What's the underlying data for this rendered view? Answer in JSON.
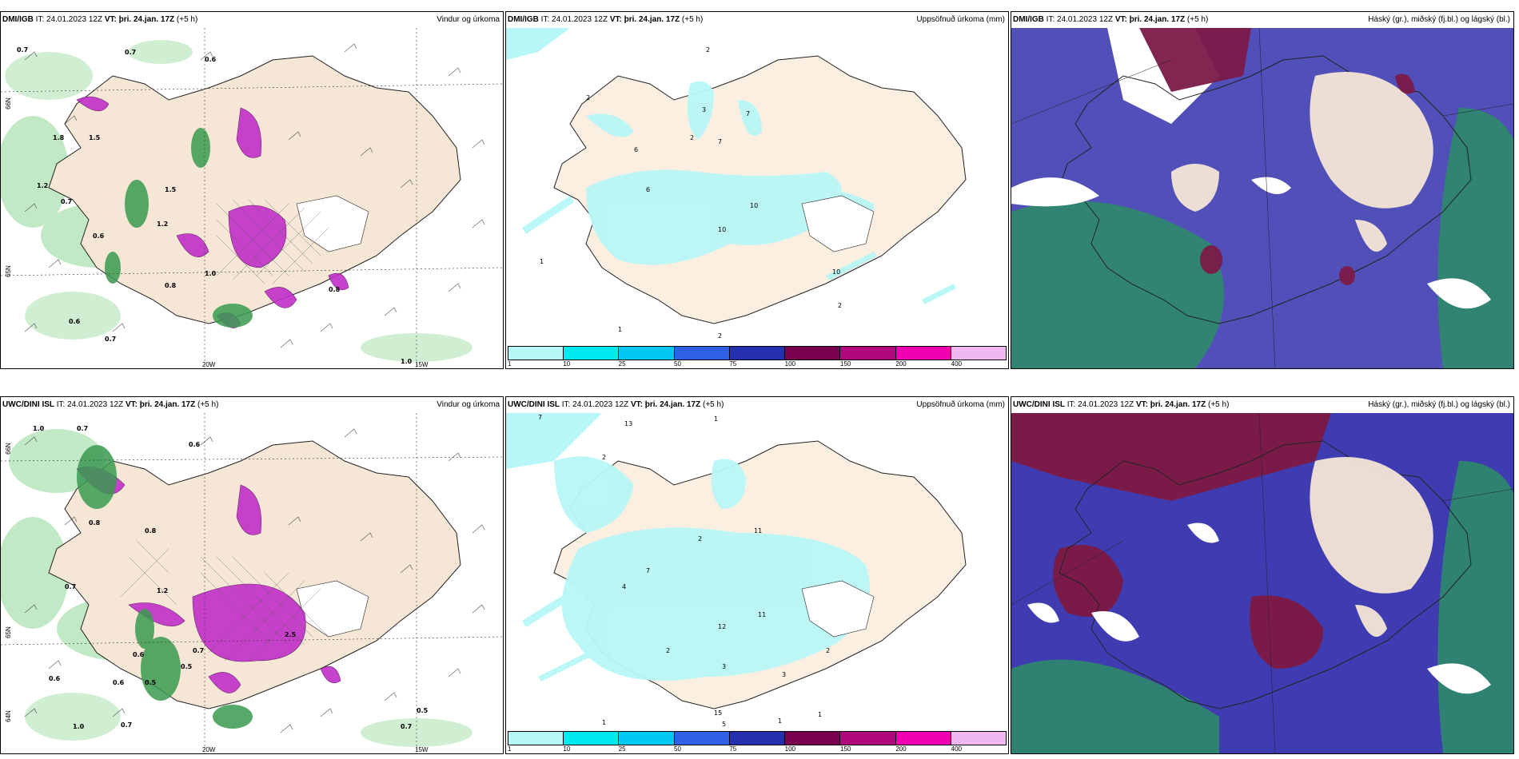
{
  "rows": [
    {
      "model": "DMI/IGB",
      "issue": "IT: 24.01.2023 12Z",
      "vt_label": "VT:",
      "vt": "þri. 24.jan. 17Z",
      "lead": "(+5 h)",
      "panel_titles": [
        "Vindur og úrkoma",
        "Uppsöfnuð úrkoma (mm)",
        "Háský (gr.), miðský (fj.bl.) og lágský (bl.)"
      ],
      "wind_values": [
        {
          "t": "0.7"
        },
        {
          "t": "0.7"
        },
        {
          "t": "0.6"
        },
        {
          "t": "1.8"
        },
        {
          "t": "1.5"
        },
        {
          "t": "1.2"
        },
        {
          "t": "0.7"
        },
        {
          "t": "1.5"
        },
        {
          "t": "0.6"
        },
        {
          "t": "1.2"
        },
        {
          "t": "1.0"
        },
        {
          "t": "0.8"
        },
        {
          "t": "0.6"
        },
        {
          "t": "0.7"
        },
        {
          "t": "0.8"
        },
        {
          "t": "1.0"
        }
      ],
      "precip_values": [
        {
          "t": "2"
        },
        {
          "t": "2"
        },
        {
          "t": "3"
        },
        {
          "t": "7"
        },
        {
          "t": "2"
        },
        {
          "t": "6"
        },
        {
          "t": "7"
        },
        {
          "t": "6"
        },
        {
          "t": "10"
        },
        {
          "t": "10"
        },
        {
          "t": "1"
        },
        {
          "t": "10"
        },
        {
          "t": "2"
        },
        {
          "t": "2"
        },
        {
          "t": "1"
        }
      ]
    },
    {
      "model": "UWC/DINI ISL",
      "issue": "IT: 24.01.2023 12Z",
      "vt_label": "VT:",
      "vt": "þri. 24.jan. 17Z",
      "lead": "(+5 h)",
      "panel_titles": [
        "Vindur og úrkoma",
        "Uppsöfnuð úrkoma (mm)",
        "Háský (gr.), miðský (fj.bl.) og lágský (bl.)"
      ],
      "wind_values": [
        {
          "t": "1.0"
        },
        {
          "t": "0.7"
        },
        {
          "t": "0.6"
        },
        {
          "t": "0.8"
        },
        {
          "t": "0.8"
        },
        {
          "t": "0.7"
        },
        {
          "t": "1.2"
        },
        {
          "t": "0.6"
        },
        {
          "t": "0.7"
        },
        {
          "t": "0.5"
        },
        {
          "t": "2.5"
        },
        {
          "t": "0.6"
        },
        {
          "t": "0.6"
        },
        {
          "t": "0.5"
        },
        {
          "t": "1.0"
        },
        {
          "t": "0.7"
        },
        {
          "t": "0.5"
        },
        {
          "t": "0.7"
        }
      ],
      "precip_values": [
        {
          "t": "7"
        },
        {
          "t": "13"
        },
        {
          "t": "1"
        },
        {
          "t": "2"
        },
        {
          "t": "11"
        },
        {
          "t": "2"
        },
        {
          "t": "4"
        },
        {
          "t": "7"
        },
        {
          "t": "2"
        },
        {
          "t": "11"
        },
        {
          "t": "12"
        },
        {
          "t": "3"
        },
        {
          "t": "3"
        },
        {
          "t": "15"
        },
        {
          "t": "5"
        },
        {
          "t": "2"
        },
        {
          "t": "1"
        },
        {
          "t": "1"
        },
        {
          "t": "1"
        }
      ]
    }
  ],
  "colorbar": {
    "labels": [
      "1",
      "10",
      "25",
      "50",
      "75",
      "100",
      "150",
      "200",
      "400"
    ],
    "colors": [
      "#b8f7f7",
      "#00e8f0",
      "#00c8f0",
      "#3060e8",
      "#2430b0",
      "#7a0050",
      "#b0087a",
      "#f000b0",
      "#f0b8f0"
    ]
  },
  "axes": {
    "left_lat": [
      "66N",
      "65N",
      "64N"
    ],
    "bottom_lon": [
      "20W",
      "15W"
    ]
  },
  "colors": {
    "land": "#f5e6d6",
    "wind_green": "#3a9a50",
    "light_green": "#b8e6bc",
    "magenta": "#c030c8",
    "cloud_blue": "#3e3cb0",
    "cloud_dark": "#7a1a48",
    "cloud_green": "#2e8a6a",
    "cyan": "#b8f7f7"
  }
}
